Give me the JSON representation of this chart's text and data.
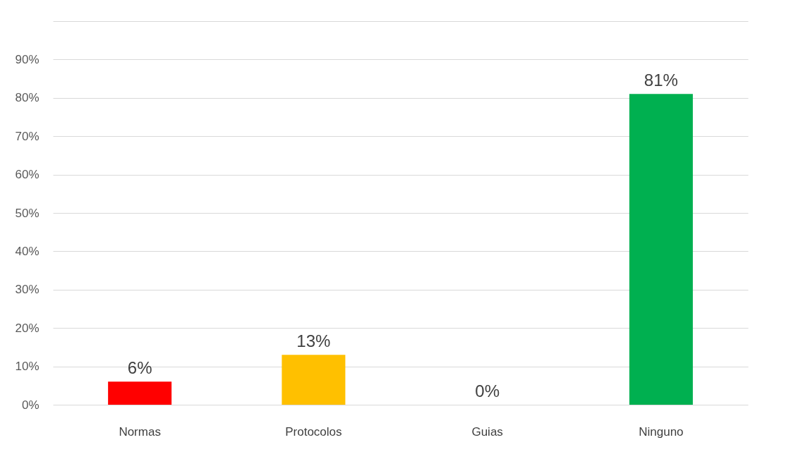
{
  "chart_data": {
    "type": "bar",
    "categories": [
      "Normas",
      "Protocolos",
      "Guias",
      "Ninguno"
    ],
    "values": [
      6,
      13,
      0,
      81
    ],
    "colors": [
      "#ff0000",
      "#ffc000",
      "#41719c",
      "#00b050"
    ],
    "value_labels": [
      "6%",
      "13%",
      "0%",
      "81%"
    ],
    "ylim": [
      0,
      100
    ],
    "yticks": [
      {
        "value": 0,
        "label": "0%"
      },
      {
        "value": 10,
        "label": "10%"
      },
      {
        "value": 20,
        "label": "20%"
      },
      {
        "value": 30,
        "label": "30%"
      },
      {
        "value": 40,
        "label": "40%"
      },
      {
        "value": 50,
        "label": "50%"
      },
      {
        "value": 60,
        "label": "60%"
      },
      {
        "value": 70,
        "label": "70%"
      },
      {
        "value": 80,
        "label": "80%"
      },
      {
        "value": 90,
        "label": "90%"
      },
      {
        "value": 100,
        "label": null
      }
    ],
    "grid": "y"
  }
}
